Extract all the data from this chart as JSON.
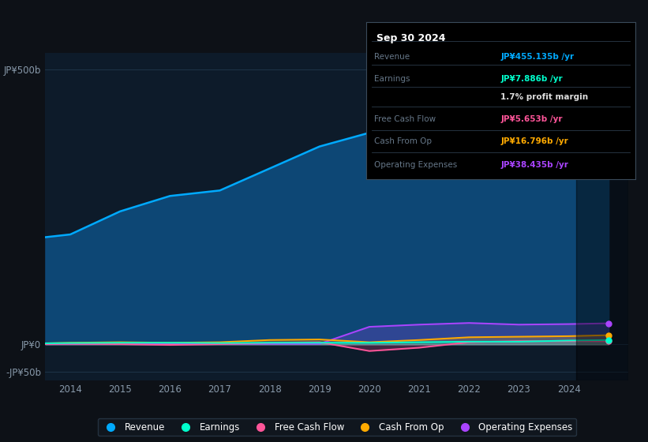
{
  "bg_color": "#0d1117",
  "plot_bg_color": "#0d1b2a",
  "box_bg_color": "#000000",
  "years": [
    2013.5,
    2014,
    2015,
    2016,
    2017,
    2018,
    2019,
    2020,
    2021,
    2022,
    2023,
    2024,
    2024.8
  ],
  "revenue": [
    195,
    200,
    242,
    270,
    280,
    320,
    360,
    385,
    405,
    435,
    420,
    445,
    455
  ],
  "earnings": [
    2,
    2.5,
    3,
    3,
    2.5,
    3,
    3,
    3,
    4,
    5,
    5,
    7,
    7.9
  ],
  "free_cash_flow": [
    0.5,
    1,
    0.5,
    -1,
    0.5,
    3,
    4,
    -12,
    -6,
    4,
    6,
    6,
    5.7
  ],
  "cash_from_op": [
    2,
    3,
    4,
    3,
    4,
    8,
    9,
    4,
    8,
    13,
    14,
    15,
    16.8
  ],
  "operating_exp": [
    0.5,
    1,
    1,
    1,
    1,
    1,
    1,
    32,
    36,
    39,
    36,
    37,
    38.4
  ],
  "ylim": [
    -65,
    530
  ],
  "ytick_vals": [
    -50,
    0,
    500
  ],
  "ytick_labels": [
    "-JP¥50b",
    "JP¥0",
    "JP¥500b"
  ],
  "xtick_vals": [
    2014,
    2015,
    2016,
    2017,
    2018,
    2019,
    2020,
    2021,
    2022,
    2023,
    2024
  ],
  "xlim": [
    2013.5,
    2025.2
  ],
  "revenue_color": "#00aaff",
  "earnings_color": "#00ffcc",
  "fcf_color": "#ff5599",
  "cashop_color": "#ffaa00",
  "opex_color": "#aa44ff",
  "revenue_fill": "#1a5a8a",
  "legend_labels": [
    "Revenue",
    "Earnings",
    "Free Cash Flow",
    "Cash From Op",
    "Operating Expenses"
  ],
  "legend_colors": [
    "#00aaff",
    "#00ffcc",
    "#ff5599",
    "#ffaa00",
    "#aa44ff"
  ],
  "grid_color": "#1e3348",
  "tick_color": "#8899aa",
  "box_date": "Sep 30 2024",
  "box_rows": [
    {
      "label": "Revenue",
      "value": "JP¥455.135b /yr",
      "lcolor": "#667788",
      "vcolor": "#00aaff"
    },
    {
      "label": "Earnings",
      "value": "JP¥7.886b /yr",
      "lcolor": "#667788",
      "vcolor": "#00ffcc"
    },
    {
      "label": "",
      "value": "1.7% profit margin",
      "lcolor": "#667788",
      "vcolor": "#dddddd"
    },
    {
      "label": "Free Cash Flow",
      "value": "JP¥5.653b /yr",
      "lcolor": "#667788",
      "vcolor": "#ff5599"
    },
    {
      "label": "Cash From Op",
      "value": "JP¥16.796b /yr",
      "lcolor": "#667788",
      "vcolor": "#ffaa00"
    },
    {
      "label": "Operating Expenses",
      "value": "JP¥38.435b /yr",
      "lcolor": "#667788",
      "vcolor": "#aa44ff"
    }
  ],
  "shade_x_start": 2024.15,
  "dot_x": 2024.8
}
